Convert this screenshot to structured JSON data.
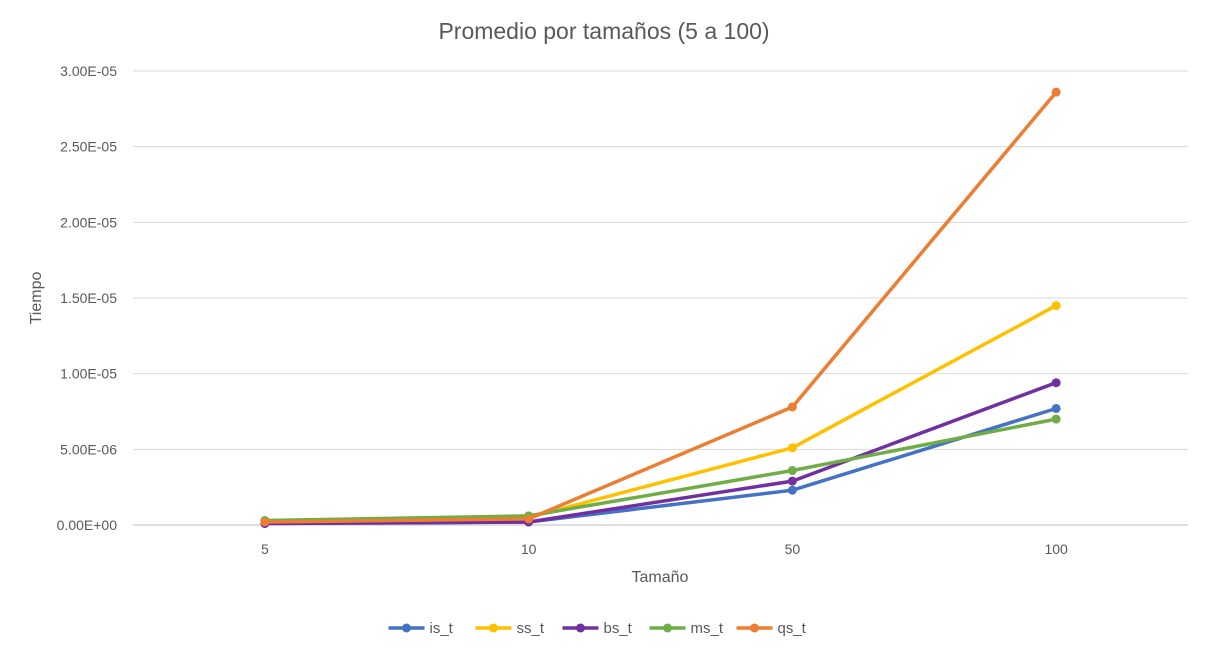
{
  "chart_data": {
    "type": "line",
    "title": "Promedio por tamaños (5 a 100)",
    "xlabel": "Tamaño",
    "ylabel": "Tiempo",
    "categories": [
      "5",
      "10",
      "50",
      "100"
    ],
    "ylim": [
      0,
      3e-05
    ],
    "yticks": [
      0,
      5e-06,
      1e-05,
      1.5e-05,
      2e-05,
      2.5e-05,
      3e-05
    ],
    "ytick_labels": [
      "0.00E+00",
      "5.00E-06",
      "1.00E-05",
      "1.50E-05",
      "2.00E-05",
      "2.50E-05",
      "3.00E-05"
    ],
    "grid": true,
    "legend_position": "bottom",
    "series": [
      {
        "name": "is_t",
        "color": "#4472C4",
        "values": [
          1e-07,
          2e-07,
          2.3e-06,
          7.7e-06
        ]
      },
      {
        "name": "ss_t",
        "color": "#FFC000",
        "values": [
          2e-07,
          5e-07,
          5.1e-06,
          1.45e-05
        ]
      },
      {
        "name": "bs_t",
        "color": "#7030A0",
        "values": [
          1e-07,
          2e-07,
          2.9e-06,
          9.4e-06
        ]
      },
      {
        "name": "ms_t",
        "color": "#70AD47",
        "values": [
          3e-07,
          6e-07,
          3.6e-06,
          7e-06
        ]
      },
      {
        "name": "qs_t",
        "color": "#ED7D31",
        "values": [
          2e-07,
          4e-07,
          7.8e-06,
          2.86e-05
        ]
      }
    ]
  }
}
